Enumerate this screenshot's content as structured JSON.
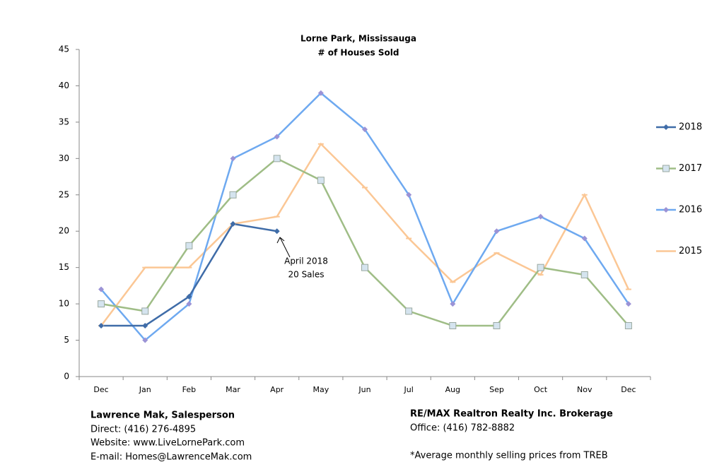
{
  "chart_data": {
    "type": "line",
    "title": [
      "Lorne Park, Mississauga",
      "# of Houses Sold"
    ],
    "categories": [
      "Dec",
      "Jan",
      "Feb",
      "Mar",
      "Apr",
      "May",
      "Jun",
      "Jul",
      "Aug",
      "Sep",
      "Oct",
      "Nov",
      "Dec"
    ],
    "series": [
      {
        "name": "2018",
        "color": "#3f6ca8",
        "marker": "diamond",
        "values": [
          7,
          7,
          11,
          21,
          20,
          null,
          null,
          null,
          null,
          null,
          null,
          null,
          null
        ]
      },
      {
        "name": "2017",
        "color": "#9fbd86",
        "marker": "square",
        "values": [
          10,
          9,
          18,
          25,
          30,
          27,
          15,
          9,
          7,
          7,
          15,
          14,
          7
        ]
      },
      {
        "name": "2016",
        "color": "#6ea9f0",
        "marker": "diamond",
        "values": [
          12,
          5,
          10,
          30,
          33,
          39,
          34,
          25,
          10,
          20,
          22,
          19,
          10
        ]
      },
      {
        "name": "2015",
        "color": "#fbc795",
        "marker": "dash",
        "values": [
          7,
          15,
          15,
          21,
          22,
          32,
          26,
          19,
          13,
          17,
          14,
          25,
          12
        ]
      }
    ],
    "ylim": [
      0,
      45
    ],
    "yticks": [
      0,
      5,
      10,
      15,
      20,
      25,
      30,
      35,
      40,
      45
    ],
    "legend": "right",
    "annotations": [
      "April 2018",
      "20 Sales"
    ]
  },
  "footer": {
    "left": [
      "Lawrence Mak, Salesperson",
      "Direct:  (416) 276-4895",
      "Website:  www.LiveLornePark.com",
      "E-mail:  Homes@LawrenceMak.com"
    ],
    "right": [
      "RE/MAX Realtron Realty Inc. Brokerage",
      "Office: (416) 782-8882",
      "*Average monthly selling prices from TREB"
    ]
  }
}
